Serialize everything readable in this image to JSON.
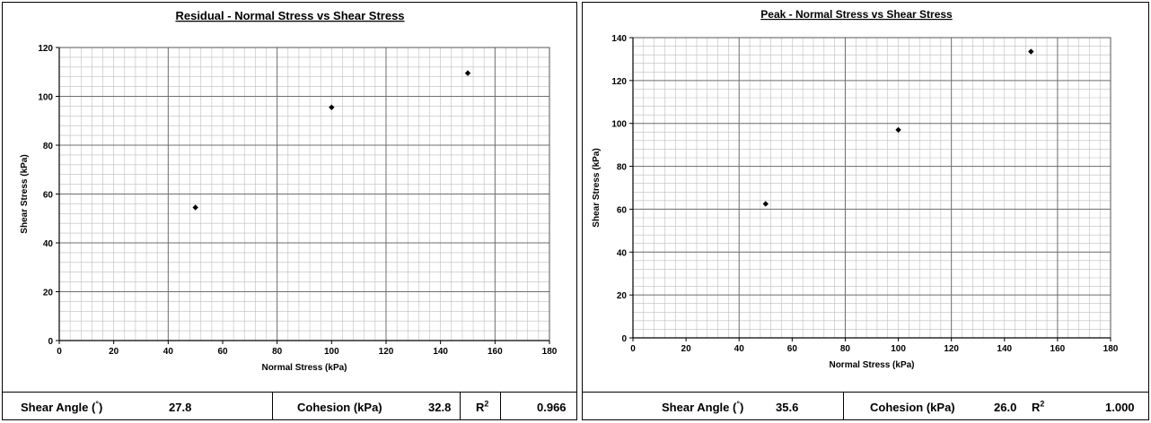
{
  "chart_data": [
    {
      "type": "scatter",
      "title": "Residual - Normal Stress vs Shear Stress",
      "xlabel": "Normal Stress (kPa)",
      "ylabel": "Shear Stress (kPa)",
      "xlim": [
        0,
        180
      ],
      "ylim": [
        0,
        120
      ],
      "x_ticks": [
        0,
        20,
        40,
        60,
        80,
        100,
        120,
        140,
        160,
        180
      ],
      "y_ticks": [
        0,
        20,
        40,
        60,
        80,
        100,
        120
      ],
      "grid": true,
      "points": [
        {
          "x": 50,
          "y": 54.5
        },
        {
          "x": 100,
          "y": 95.5
        },
        {
          "x": 150,
          "y": 109.5
        }
      ],
      "summary": {
        "shear_angle_label": "Shear Angle (",
        "shear_angle_unit": "°",
        "shear_angle_close": ")",
        "shear_angle_value": "27.8",
        "cohesion_label": "Cohesion (kPa)",
        "cohesion_value": "32.8",
        "r2_label": "R",
        "r2_sup": "2",
        "r2_value": "0.966"
      }
    },
    {
      "type": "scatter",
      "title": "Peak - Normal Stress vs Shear Stress",
      "xlabel": "Normal Stress (kPa)",
      "ylabel": "Shear Stress (kPa)",
      "xlim": [
        0,
        180
      ],
      "ylim": [
        0,
        140
      ],
      "x_ticks": [
        0,
        20,
        40,
        60,
        80,
        100,
        120,
        140,
        160,
        180
      ],
      "y_ticks": [
        0,
        20,
        40,
        60,
        80,
        100,
        120,
        140
      ],
      "grid": true,
      "points": [
        {
          "x": 50,
          "y": 62.5
        },
        {
          "x": 100,
          "y": 97
        },
        {
          "x": 150,
          "y": 133.5
        }
      ],
      "summary": {
        "shear_angle_label": "Shear Angle (",
        "shear_angle_unit": "°",
        "shear_angle_close": ")",
        "shear_angle_value": "35.6",
        "cohesion_label": "Cohesion (kPa)",
        "cohesion_value": "26.0",
        "r2_label": "R",
        "r2_sup": "2",
        "r2_value": "1.000"
      }
    }
  ]
}
